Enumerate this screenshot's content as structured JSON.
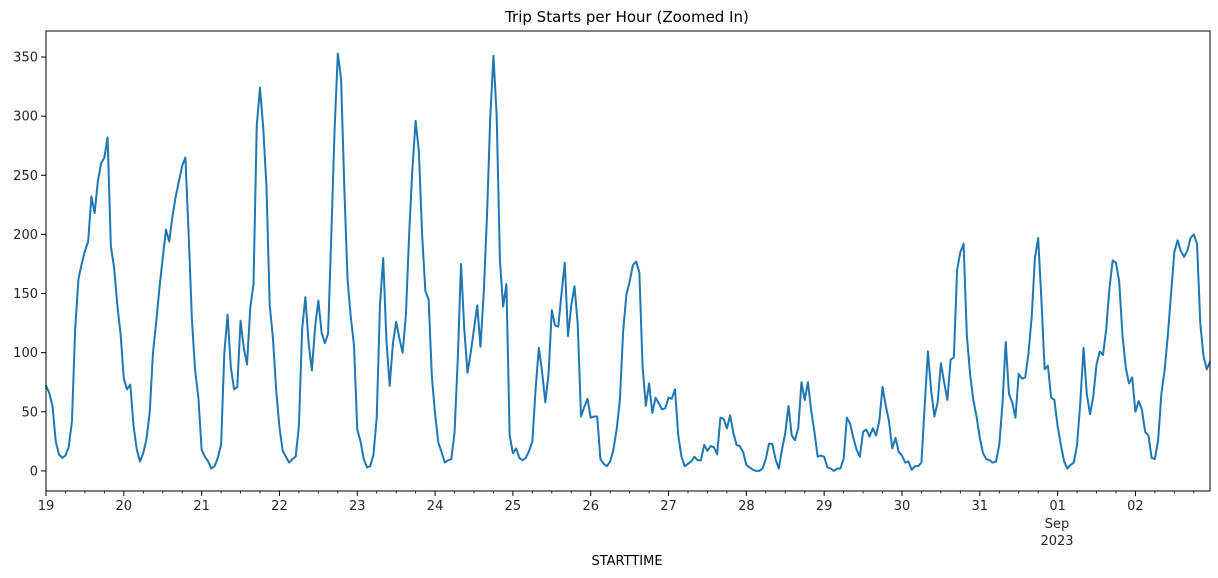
{
  "chart_data": {
    "type": "line",
    "title": "Trip Starts per Hour (Zoomed In)",
    "xlabel": "STARTTIME",
    "ylabel": "",
    "ylim": [
      -17,
      372
    ],
    "xlim_days": [
      "2023-08-19T00:00",
      "2023-09-02T23:00"
    ],
    "x_tick_labels": [
      "19",
      "20",
      "21",
      "22",
      "23",
      "24",
      "25",
      "26",
      "27",
      "28",
      "29",
      "30",
      "31",
      "01",
      "02"
    ],
    "x_month_label": "Sep",
    "x_year_label": "2023",
    "y_ticks": [
      0,
      50,
      100,
      150,
      200,
      250,
      300,
      350
    ],
    "grid": false,
    "line_color": "#1f77b4",
    "series": [
      {
        "name": "",
        "start": "2023-08-19T00:00",
        "step": "1H",
        "values": [
          72,
          66,
          55,
          25,
          14,
          11,
          13,
          20,
          42,
          120,
          162,
          175,
          186,
          194,
          232,
          218,
          245,
          260,
          265,
          282,
          190,
          172,
          140,
          116,
          78,
          69,
          73,
          38,
          18,
          8,
          15,
          27,
          50,
          100,
          126,
          155,
          180,
          204,
          194,
          215,
          232,
          245,
          258,
          265,
          200,
          128,
          85,
          62,
          18,
          12,
          8,
          2,
          4,
          11,
          22,
          100,
          132,
          88,
          69,
          71,
          127,
          104,
          90,
          138,
          158,
          292,
          324,
          290,
          240,
          140,
          112,
          68,
          37,
          17,
          12,
          7,
          10,
          12,
          38,
          120,
          147,
          108,
          85,
          122,
          144,
          117,
          108,
          116,
          200,
          288,
          353,
          332,
          240,
          162,
          130,
          106,
          35,
          25,
          10,
          3,
          4,
          14,
          45,
          140,
          180,
          110,
          72,
          108,
          126,
          112,
          100,
          132,
          200,
          255,
          296,
          270,
          200,
          152,
          145,
          80,
          48,
          24,
          16,
          7,
          9,
          10,
          32,
          95,
          175,
          120,
          83,
          100,
          120,
          140,
          105,
          150,
          215,
          298,
          351,
          300,
          178,
          139,
          158,
          30,
          15,
          19,
          11,
          9,
          11,
          17,
          25,
          69,
          104,
          84,
          58,
          82,
          136,
          123,
          122,
          150,
          176,
          114,
          140,
          156,
          124,
          46,
          54,
          61,
          45,
          46,
          46,
          10,
          6,
          4,
          8,
          18,
          35,
          60,
          118,
          149,
          160,
          174,
          177,
          168,
          88,
          55,
          74,
          49,
          62,
          57,
          52,
          53,
          62,
          61,
          69,
          30,
          12,
          4,
          6,
          8,
          12,
          9,
          9,
          22,
          17,
          21,
          20,
          14,
          45,
          44,
          36,
          47,
          32,
          22,
          21,
          16,
          5,
          3,
          1,
          0,
          0,
          2,
          10,
          23,
          23,
          10,
          2,
          18,
          32,
          55,
          30,
          26,
          36,
          75,
          60,
          75,
          51,
          33,
          12,
          13,
          12,
          3,
          2,
          0,
          2,
          2,
          10,
          45,
          40,
          28,
          18,
          12,
          33,
          35,
          29,
          36,
          30,
          42,
          71,
          55,
          42,
          19,
          28,
          16,
          13,
          7,
          8,
          1,
          4,
          4,
          7,
          55,
          101,
          68,
          46,
          58,
          91,
          75,
          60,
          94,
          96,
          170,
          185,
          192,
          115,
          82,
          60,
          46,
          28,
          15,
          10,
          9,
          7,
          8,
          22,
          57,
          109,
          65,
          58,
          45,
          82,
          78,
          79,
          99,
          130,
          180,
          197,
          145,
          86,
          89,
          62,
          60,
          38,
          22,
          8,
          2,
          5,
          7,
          22,
          58,
          104,
          65,
          48,
          63,
          90,
          101,
          98,
          120,
          155,
          178,
          176,
          160,
          115,
          88,
          74,
          79,
          50,
          59,
          52,
          33,
          30,
          11,
          10,
          26,
          65,
          85,
          115,
          150,
          185,
          195,
          186,
          181,
          186,
          197,
          200,
          192,
          125,
          97,
          86,
          92
        ]
      }
    ]
  }
}
